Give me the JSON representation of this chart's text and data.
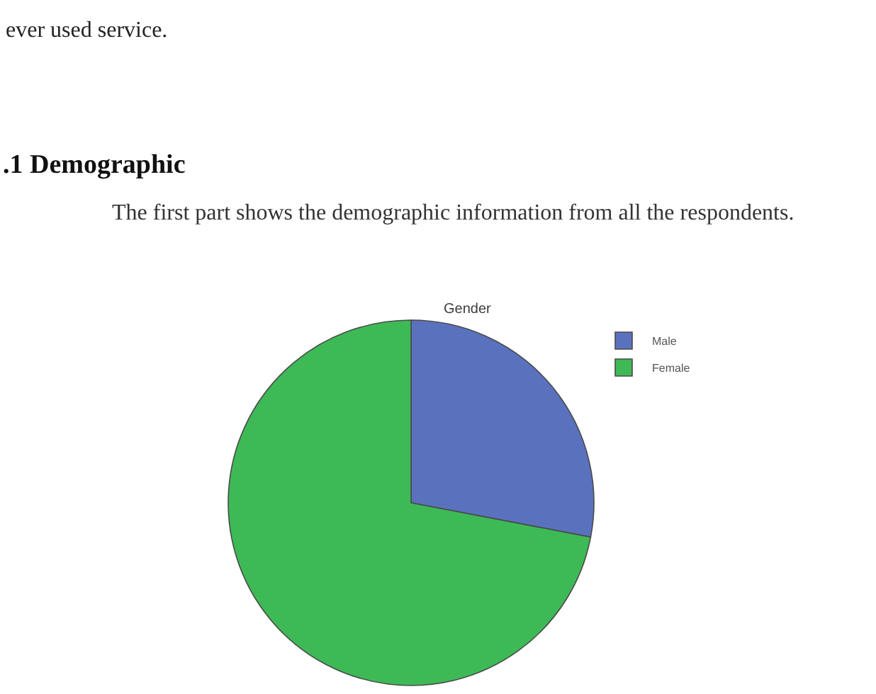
{
  "chart_data": {
    "type": "pie",
    "title": "Gender",
    "categories": [
      "Male",
      "Female"
    ],
    "values": [
      28,
      72
    ],
    "colors": [
      "#5a72be",
      "#3dba56"
    ],
    "legend": "top right",
    "annotations": [
      "ever used service.",
      ".1 Demographic",
      "The first part shows the demographic information from all the respondents."
    ]
  }
}
